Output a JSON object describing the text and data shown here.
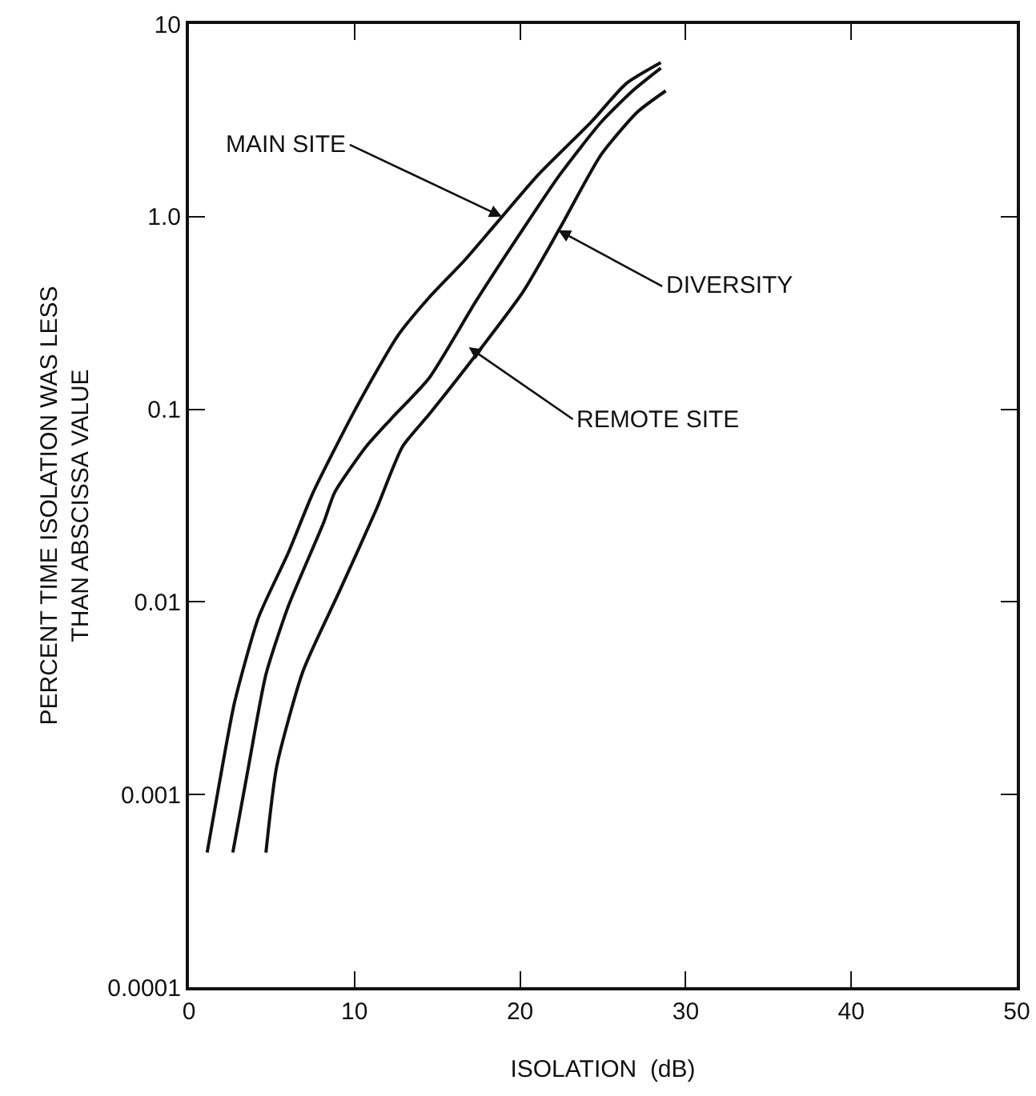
{
  "chart_data": {
    "type": "line",
    "xlabel": "ISOLATION  (dB)",
    "ylabel": "PERCENT TIME ISOLATION WAS LESS\nTHAN ABSCISSA VALUE",
    "series": [
      {
        "color": "#111111",
        "x": [
          1.1,
          1.8,
          2.75,
          4.2,
          6.0,
          7.5,
          10.05,
          12.6,
          14.5,
          16.7,
          18.6,
          21.1,
          24.3,
          26.4,
          28.5
        ],
        "values": [
          0.0005,
          0.0011,
          0.003,
          0.0083,
          0.018,
          0.037,
          0.1,
          0.24,
          0.38,
          0.6,
          0.93,
          1.65,
          3.1,
          4.9,
          6.3
        ]
      },
      {
        "color": "#111111",
        "x": [
          2.65,
          3.6,
          4.65,
          6.0,
          8.15,
          8.8,
          10.7,
          12.2,
          14.5,
          17.3,
          19.8,
          22.4,
          24.9,
          26.8,
          28.5
        ],
        "values": [
          0.0005,
          0.0014,
          0.0042,
          0.0095,
          0.026,
          0.037,
          0.064,
          0.089,
          0.145,
          0.36,
          0.77,
          1.65,
          3.1,
          4.5,
          5.9
        ]
      },
      {
        "color": "#111111",
        "x": [
          4.65,
          5.3,
          6.9,
          9.1,
          11.3,
          12.9,
          14.5,
          17.3,
          20.2,
          22.4,
          24.9,
          27.1,
          28.8
        ],
        "values": [
          0.0005,
          0.0014,
          0.0044,
          0.0114,
          0.03,
          0.064,
          0.094,
          0.19,
          0.41,
          0.87,
          2.1,
          3.5,
          4.5
        ]
      }
    ],
    "annotations": [
      {
        "text": "MAIN SITE",
        "x": 18.9,
        "y": 1.0
      },
      {
        "text": "DIVERSITY",
        "x": 22.3,
        "y": 0.85
      },
      {
        "text": "REMOTE SITE",
        "x": 16.9,
        "y": 0.21
      }
    ],
    "log": "y",
    "xlim": [
      0,
      50
    ],
    "xticks": [
      0,
      10,
      20,
      30,
      40,
      50
    ],
    "ylim": [
      0.0001,
      10
    ],
    "yticks": [
      0.0001,
      0.001,
      0.01,
      0.1,
      {
        "value": 1,
        "label": "1.0"
      },
      10
    ],
    "grid": false,
    "marker": "none",
    "line_style": "solid"
  }
}
